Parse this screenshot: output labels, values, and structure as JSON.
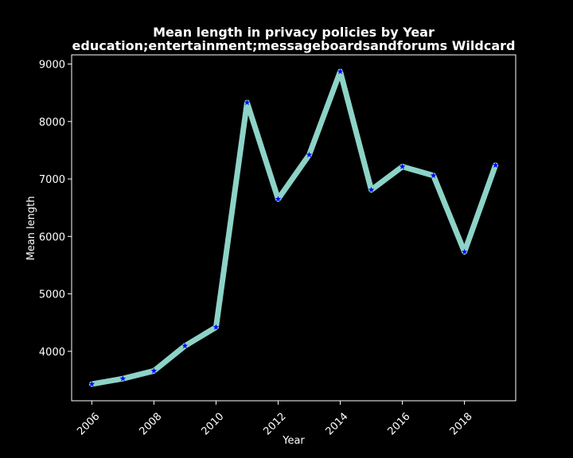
{
  "chart_data": {
    "type": "line",
    "title": "Mean length in privacy policies by Year",
    "subtitle": "education;entertainment;messageboardsandforums Wildcard",
    "xlabel": "Year",
    "ylabel": "Mean length",
    "x": [
      2006,
      2007,
      2008,
      2009,
      2010,
      2011,
      2012,
      2013,
      2014,
      2015,
      2016,
      2017,
      2018,
      2019
    ],
    "series": [
      {
        "values": [
          3430,
          3525,
          3660,
          4095,
          4420,
          8330,
          6650,
          7420,
          8870,
          6810,
          7215,
          7060,
          5730,
          7240
        ]
      }
    ],
    "xlim": [
      2005.35,
      2019.65
    ],
    "ylim": [
      3140,
      9160
    ],
    "x_ticks": [
      2006,
      2008,
      2010,
      2012,
      2014,
      2016,
      2018
    ],
    "y_ticks": [
      4000,
      5000,
      6000,
      7000,
      8000,
      9000
    ],
    "grid": false,
    "colors": {
      "background": "#000000",
      "line": "#8dd3c7",
      "marker": "#0000ff",
      "text": "#ffffff",
      "axes": "#ffffff"
    },
    "marker": "star"
  }
}
